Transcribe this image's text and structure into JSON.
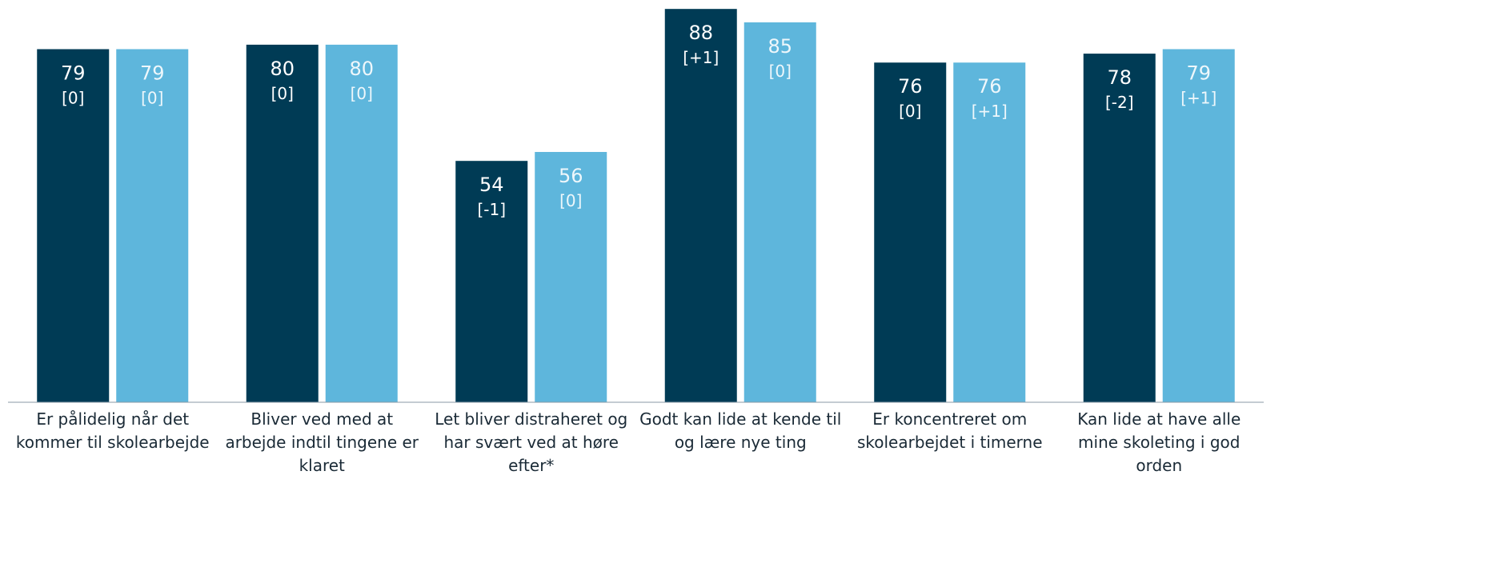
{
  "chart_data": {
    "type": "bar",
    "categories": [
      "Er pålidelig når det kommer til skolearbejde",
      "Bliver ved med at arbejde indtil tingene er klaret",
      "Let bliver distraheret og har svært ved at høre efter*",
      "Godt kan lide at kende til og lære nye ting",
      "Er koncentreret om skolearbejdet i timerne",
      "Kan lide at have alle mine skoleting i god orden"
    ],
    "series": [
      {
        "color": "#003b55",
        "values": [
          79,
          80,
          54,
          88,
          76,
          78
        ],
        "changes": [
          "[0]",
          "[0]",
          "[-1]",
          "[+1]",
          "[0]",
          "[-2]"
        ]
      },
      {
        "color": "#5eb6dc",
        "values": [
          79,
          80,
          56,
          85,
          76,
          79
        ],
        "changes": [
          "[0]",
          "[0]",
          "[0]",
          "[0]",
          "[+1]",
          "[+1]"
        ]
      }
    ],
    "ylim": [
      0,
      90
    ]
  }
}
